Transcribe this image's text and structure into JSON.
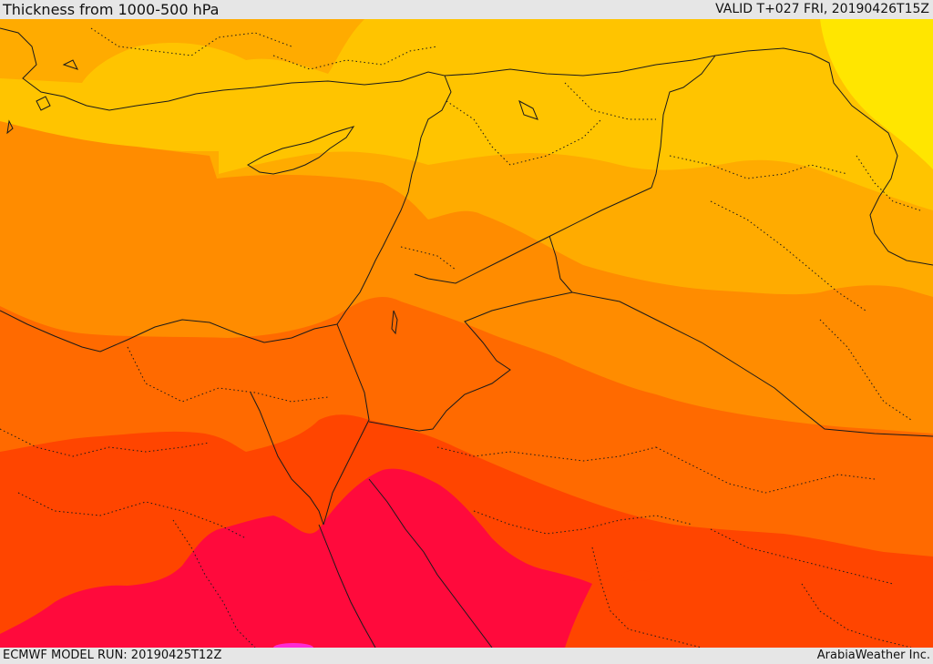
{
  "header": {
    "title": "Thickness from 1000-500 hPa",
    "valid_time": "VALID T+027 FRI, 20190426T15Z"
  },
  "footer": {
    "model_run": "ECMWF MODEL RUN: 20190425T12Z",
    "credit": "ArabiaWeather Inc."
  },
  "map": {
    "field": "1000-500 hPa thickness",
    "colors": {
      "band_coldest": "#ffe600",
      "band_1": "#ffc400",
      "band_2": "#ffab00",
      "band_3": "#ff8c00",
      "band_4": "#ff6a00",
      "band_5": "#ff4500",
      "band_warmest": "#ff0a3c",
      "magenta_spot": "#ff2ad4",
      "border_line": "#1a1a1a"
    }
  }
}
